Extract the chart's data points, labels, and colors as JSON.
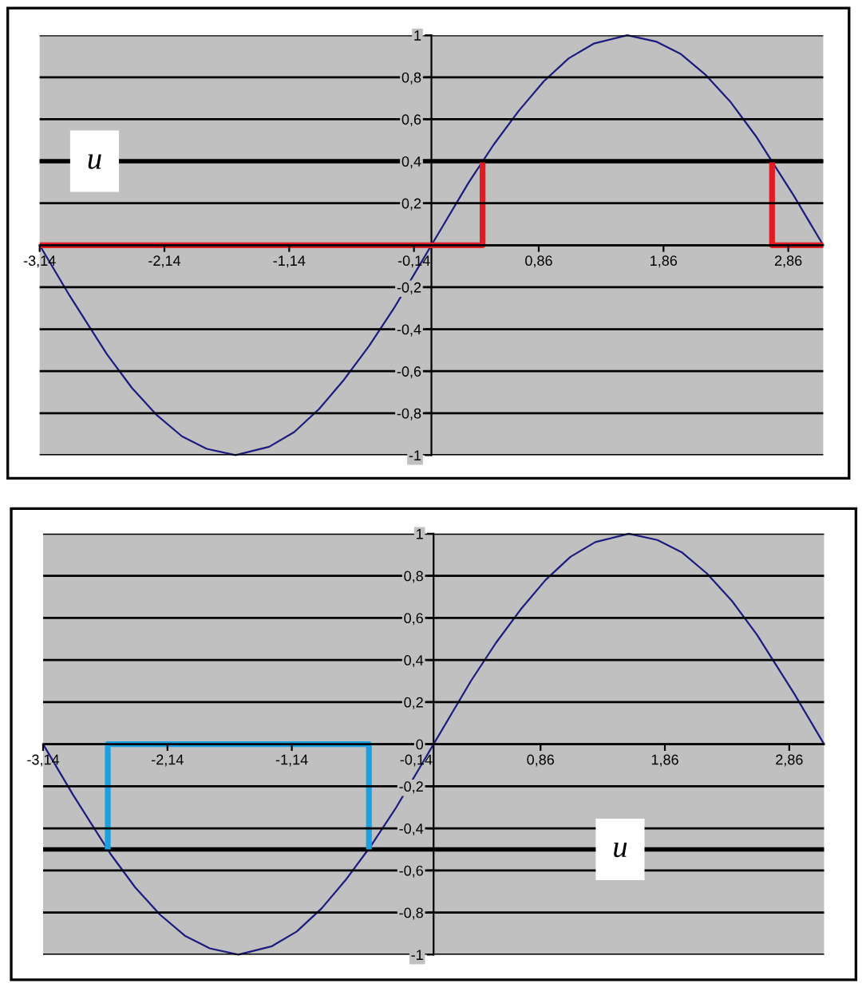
{
  "chart_data": [
    {
      "type": "line",
      "xlim": [
        -3.14,
        3.14
      ],
      "ylim": [
        -1,
        1
      ],
      "grid": "y",
      "xticks": [
        {
          "value": -3.14,
          "label": "-3,14"
        },
        {
          "value": -2.14,
          "label": "-2,14"
        },
        {
          "value": -1.14,
          "label": "-1,14"
        },
        {
          "value": -0.14,
          "label": "-0,14"
        },
        {
          "value": 0.86,
          "label": "0,86"
        },
        {
          "value": 1.86,
          "label": "1,86"
        },
        {
          "value": 2.86,
          "label": "2,86"
        }
      ],
      "yticks": [
        -1,
        {
          "value": -0.8,
          "label": "-0,8"
        },
        {
          "value": -0.6,
          "label": "-0,6"
        },
        {
          "value": -0.4,
          "label": "-0,4"
        },
        {
          "value": -0.2,
          "label": "-0,2"
        },
        {
          "value": 0,
          "label": null
        },
        {
          "value": 0.2,
          "label": "0,2"
        },
        {
          "value": 0.4,
          "label": "0,4"
        },
        {
          "value": 0.6,
          "label": "0,6"
        },
        {
          "value": 0.8,
          "label": "0,8"
        },
        1
      ],
      "series": [
        {
          "color": "#1c1c80",
          "x": [
            -3.14,
            -2.9,
            -2.75,
            -2.6,
            -2.4,
            -2.2,
            -2.0,
            -1.8,
            -1.57,
            -1.3,
            -1.1,
            -0.9,
            -0.7,
            -0.5,
            -0.3,
            -0.1,
            0,
            0.1,
            0.3,
            0.5,
            0.7,
            0.9,
            1.1,
            1.3,
            1.57,
            1.8,
            2.0,
            2.2,
            2.4,
            2.6,
            2.75,
            2.9,
            3.14
          ],
          "values": [
            0,
            -0.24,
            -0.38,
            -0.52,
            -0.68,
            -0.81,
            -0.91,
            -0.97,
            -1,
            -0.96,
            -0.89,
            -0.78,
            -0.64,
            -0.48,
            -0.3,
            -0.1,
            0,
            0.1,
            0.3,
            0.48,
            0.64,
            0.78,
            0.89,
            0.96,
            1,
            0.97,
            0.91,
            0.81,
            0.68,
            0.52,
            0.38,
            0.24,
            0
          ]
        },
        {
          "color": "#e31b23",
          "x": [
            -3.14,
            0.41,
            0.41
          ],
          "values": [
            0,
            0,
            0.4
          ]
        },
        {
          "color": "#e31b23",
          "x": [
            2.73,
            2.73,
            3.14
          ],
          "values": [
            0.4,
            0,
            0
          ]
        }
      ],
      "ref_lines": [
        {
          "axis": "y",
          "value": 0.4,
          "color": "#000000"
        }
      ],
      "annotations": [
        {
          "text": "u",
          "x": -2.7,
          "y": 0.4
        }
      ]
    },
    {
      "type": "line",
      "xlim": [
        -3.14,
        3.14
      ],
      "ylim": [
        -1,
        1
      ],
      "grid": "y",
      "xticks": [
        {
          "value": -3.14,
          "label": "-3,14"
        },
        {
          "value": -2.14,
          "label": "-2,14"
        },
        {
          "value": -1.14,
          "label": "-1,14"
        },
        {
          "value": -0.14,
          "label": "-0,14"
        },
        {
          "value": 0.86,
          "label": "0,86"
        },
        {
          "value": 1.86,
          "label": "1,86"
        },
        {
          "value": 2.86,
          "label": "2,86"
        }
      ],
      "yticks": [
        -1,
        {
          "value": -0.8,
          "label": "-0,8"
        },
        {
          "value": -0.6,
          "label": "-0,6"
        },
        {
          "value": -0.4,
          "label": "-0,4"
        },
        {
          "value": -0.2,
          "label": "-0,2"
        },
        0,
        {
          "value": 0.2,
          "label": "0,2"
        },
        {
          "value": 0.4,
          "label": "0,4"
        },
        {
          "value": 0.6,
          "label": "0,6"
        },
        {
          "value": 0.8,
          "label": "0,8"
        },
        1
      ],
      "series": [
        {
          "color": "#1c1c80",
          "x": [
            -3.14,
            -2.9,
            -2.75,
            -2.6,
            -2.4,
            -2.2,
            -2.0,
            -1.8,
            -1.57,
            -1.3,
            -1.1,
            -0.9,
            -0.7,
            -0.5,
            -0.3,
            -0.1,
            0,
            0.1,
            0.3,
            0.5,
            0.7,
            0.9,
            1.1,
            1.3,
            1.57,
            1.8,
            2.0,
            2.2,
            2.4,
            2.6,
            2.75,
            2.9,
            3.14
          ],
          "values": [
            0,
            -0.24,
            -0.38,
            -0.52,
            -0.68,
            -0.81,
            -0.91,
            -0.97,
            -1,
            -0.96,
            -0.89,
            -0.78,
            -0.64,
            -0.48,
            -0.3,
            -0.1,
            0,
            0.1,
            0.3,
            0.48,
            0.64,
            0.78,
            0.89,
            0.96,
            1,
            0.97,
            0.91,
            0.81,
            0.68,
            0.52,
            0.38,
            0.24,
            0
          ]
        },
        {
          "color": "#1ba1e2",
          "x": [
            -2.62,
            -2.62,
            -0.52,
            -0.52
          ],
          "values": [
            -0.5,
            0,
            0,
            -0.5
          ]
        }
      ],
      "ref_lines": [
        {
          "axis": "y",
          "value": -0.5,
          "color": "#000000"
        }
      ],
      "annotations": [
        {
          "text": "u",
          "x": 1.5,
          "y": -0.5
        }
      ]
    }
  ]
}
